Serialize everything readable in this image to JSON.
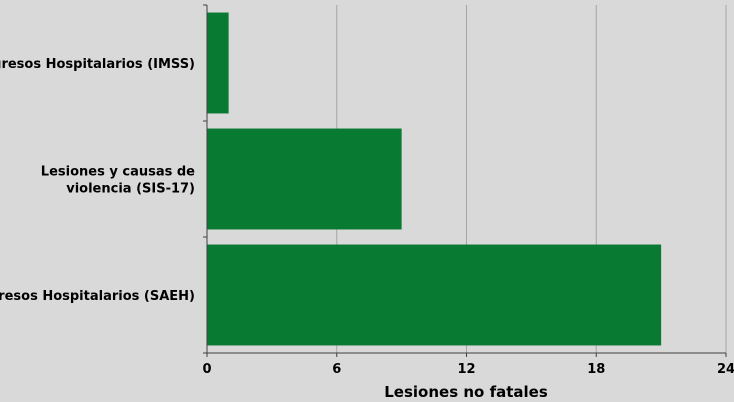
{
  "chart_data": {
    "type": "bar",
    "orientation": "horizontal",
    "categories": [
      [
        "Egresos Hospitalarios (IMSS)"
      ],
      [
        "Lesiones y causas de",
        "violencia (SIS-17)"
      ],
      [
        "Egresos Hospitalarios (SAEH)"
      ]
    ],
    "values": [
      1,
      9,
      21
    ],
    "xlabel": "Lesiones no fatales",
    "ylabel": "",
    "xlim": [
      0,
      24
    ],
    "xticks": [
      0,
      6,
      12,
      18,
      24
    ],
    "grid": "vertical",
    "legend": "none",
    "colors": {
      "bar": "#087a31",
      "background": "#d9d9d9",
      "grid": "#a6a6a6",
      "axis": "#404040"
    }
  }
}
